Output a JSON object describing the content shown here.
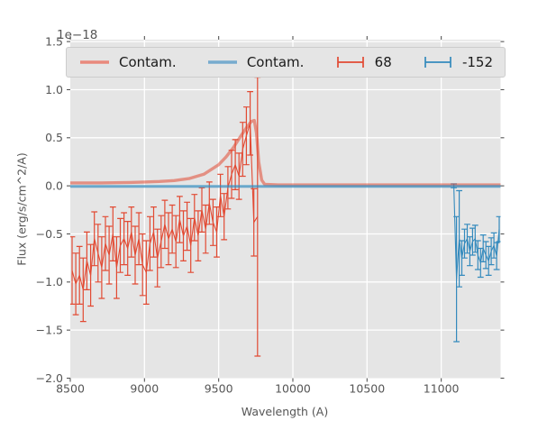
{
  "figure": {
    "offset_text": "1e−18",
    "xlabel": "Wavelength (A)",
    "ylabel": "Flux (erg/s/cm^2/A)"
  },
  "legend": {
    "entries": [
      {
        "label": "Contam.",
        "type": "line",
        "color": "#e9897d"
      },
      {
        "label": "Contam.",
        "type": "line",
        "color": "#77abce"
      },
      {
        "label": "68",
        "type": "errorbar",
        "color": "#e24a33"
      },
      {
        "label": "-152",
        "type": "errorbar",
        "color": "#348abd"
      }
    ]
  },
  "colors": {
    "axes_background": "#e5e5e5",
    "grid": "#ffffff",
    "tick": "#555555",
    "tick_label": "#555555",
    "red": "#e24a33",
    "blue": "#348abd",
    "contam_red": "rgba(226,74,51,0.55)",
    "contam_blue": "rgba(52,138,189,0.72)"
  },
  "chart_data": {
    "type": "line",
    "title": "",
    "xlabel": "Wavelength (A)",
    "ylabel": "Flux (erg/s/cm^2/A)",
    "y_offset_factor": "1e-18",
    "xlim": [
      8500,
      11400
    ],
    "ylim": [
      -2.0,
      1.52
    ],
    "xticks": [
      8500,
      9000,
      9500,
      10000,
      10500,
      11000
    ],
    "yticks": [
      -2.0,
      -1.5,
      -1.0,
      -0.5,
      0.0,
      0.5,
      1.0,
      1.5
    ],
    "grid": true,
    "legend_position": "upper center",
    "series": [
      {
        "name": "68",
        "legend_label": "68",
        "type": "errorbar",
        "color": "#e24a33",
        "x": [
          8512,
          8537,
          8562,
          8587,
          8612,
          8637,
          8662,
          8687,
          8712,
          8737,
          8762,
          8787,
          8812,
          8837,
          8862,
          8887,
          8912,
          8937,
          8962,
          8987,
          9012,
          9037,
          9062,
          9087,
          9112,
          9137,
          9162,
          9187,
          9212,
          9237,
          9262,
          9287,
          9312,
          9337,
          9362,
          9387,
          9412,
          9437,
          9462,
          9487,
          9512,
          9537,
          9562,
          9587,
          9612,
          9637,
          9662,
          9687,
          9712,
          9737,
          9762
        ],
        "y": [
          -0.88,
          -1.02,
          -0.93,
          -1.08,
          -0.78,
          -0.93,
          -0.55,
          -0.7,
          -0.85,
          -0.6,
          -0.72,
          -0.5,
          -0.85,
          -0.62,
          -0.55,
          -0.65,
          -0.48,
          -0.72,
          -0.55,
          -0.82,
          -0.9,
          -0.6,
          -0.48,
          -0.75,
          -0.58,
          -0.4,
          -0.55,
          -0.45,
          -0.58,
          -0.35,
          -0.52,
          -0.42,
          -0.62,
          -0.33,
          -0.52,
          -0.25,
          -0.45,
          -0.18,
          -0.38,
          -0.48,
          -0.1,
          -0.32,
          -0.02,
          0.12,
          0.22,
          0.1,
          0.38,
          0.52,
          0.65,
          -0.38,
          -0.32
        ],
        "yerr": [
          0.35,
          0.32,
          0.3,
          0.33,
          0.3,
          0.32,
          0.28,
          0.3,
          0.32,
          0.28,
          0.3,
          0.28,
          0.32,
          0.28,
          0.27,
          0.28,
          0.26,
          0.3,
          0.27,
          0.32,
          0.33,
          0.28,
          0.26,
          0.3,
          0.27,
          0.25,
          0.27,
          0.25,
          0.27,
          0.24,
          0.26,
          0.25,
          0.28,
          0.24,
          0.26,
          0.23,
          0.25,
          0.22,
          0.24,
          0.26,
          0.22,
          0.24,
          0.22,
          0.25,
          0.26,
          0.24,
          0.28,
          0.3,
          0.33,
          0.35,
          1.45
        ]
      },
      {
        "name": "-152",
        "legend_label": "-152",
        "type": "errorbar",
        "color": "#348abd",
        "x": [
          11085,
          11103,
          11121,
          11139,
          11157,
          11175,
          11193,
          11211,
          11229,
          11247,
          11265,
          11283,
          11301,
          11319,
          11337,
          11355,
          11373,
          11391
        ],
        "y": [
          0.0,
          -0.97,
          -0.55,
          -0.75,
          -0.6,
          -0.55,
          -0.68,
          -0.58,
          -0.55,
          -0.72,
          -0.8,
          -0.65,
          -0.72,
          -0.78,
          -0.68,
          -0.62,
          -0.73,
          -0.45
        ],
        "yerr": [
          0.02,
          0.65,
          0.5,
          0.18,
          0.15,
          0.15,
          0.15,
          0.14,
          0.14,
          0.15,
          0.15,
          0.14,
          0.14,
          0.15,
          0.14,
          0.13,
          0.14,
          0.13
        ]
      },
      {
        "name": "Contam. (red)",
        "legend_label": "Contam.",
        "type": "line",
        "color": "rgba(226,74,51,0.55)",
        "width": 3.4,
        "x": [
          8500,
          8700,
          8900,
          9000,
          9100,
          9200,
          9300,
          9400,
          9500,
          9550,
          9600,
          9650,
          9690,
          9720,
          9740,
          9755,
          9770,
          9790,
          9810,
          9900,
          10500,
          11400
        ],
        "y": [
          0.03,
          0.03,
          0.035,
          0.04,
          0.045,
          0.055,
          0.075,
          0.12,
          0.22,
          0.3,
          0.4,
          0.52,
          0.61,
          0.67,
          0.68,
          0.55,
          0.25,
          0.06,
          0.015,
          0.01,
          0.01,
          0.01
        ]
      },
      {
        "name": "Contam. (blue)",
        "legend_label": "Contam.",
        "type": "line",
        "color": "rgba(52,138,189,0.72)",
        "width": 3.0,
        "x": [
          8500,
          11400
        ],
        "y": [
          -0.005,
          -0.005
        ]
      }
    ]
  }
}
